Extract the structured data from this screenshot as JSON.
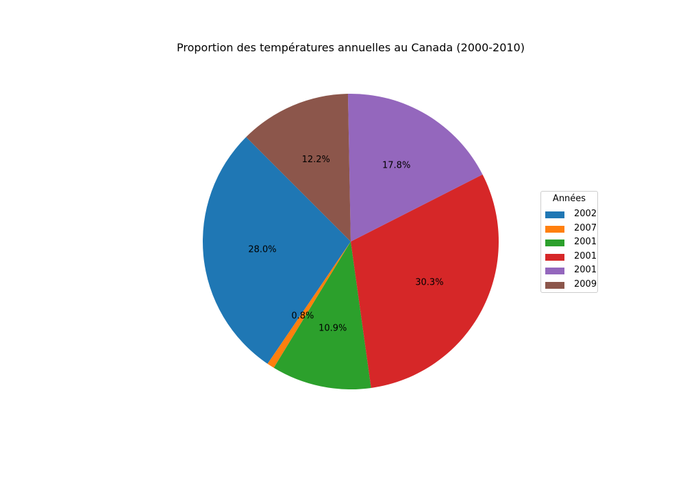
{
  "chart_data": {
    "type": "pie",
    "title": "Proportion des températures annuelles au Canada (2000-2010)",
    "legend_title": "Années",
    "legend_position": "center-right",
    "slices": [
      {
        "label": "2002",
        "value": 28.0,
        "pct_label": "28.0%",
        "color": "#1f77b4"
      },
      {
        "label": "2007",
        "value": 0.8,
        "pct_label": "0.8%",
        "color": "#ff7f0e"
      },
      {
        "label": "2001",
        "value": 10.9,
        "pct_label": "10.9%",
        "color": "#2ca02c"
      },
      {
        "label": "2001",
        "value": 30.3,
        "pct_label": "30.3%",
        "color": "#d62728"
      },
      {
        "label": "2001",
        "value": 17.8,
        "pct_label": "17.8%",
        "color": "#9467bd"
      },
      {
        "label": "2009",
        "value": 12.2,
        "pct_label": "12.2%",
        "color": "#8c564b"
      }
    ]
  }
}
